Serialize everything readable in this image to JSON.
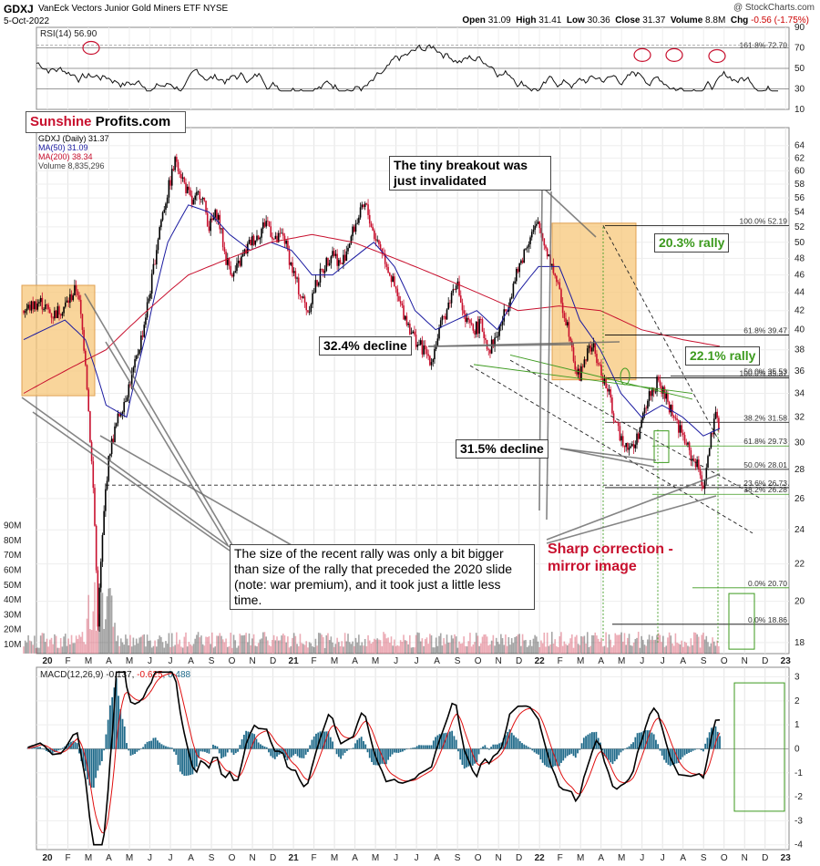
{
  "header": {
    "ticker": "GDXJ",
    "name": "VanEck Vectors Junior Gold Miners ETF",
    "exchange": "NYSE",
    "date": "5-Oct-2022",
    "watermark": "@ StockCharts.com",
    "open_label": "Open",
    "open": "31.09",
    "high_label": "High",
    "high": "31.41",
    "low_label": "Low",
    "low": "30.36",
    "close_label": "Close",
    "close": "31.37",
    "volume_label": "Volume",
    "volume": "8.8M",
    "chg_label": "Chg",
    "chg": "-0.56 (-1.75%)"
  },
  "logo": {
    "part1": "Sunshine",
    "part2": "Profits.com"
  },
  "legend": {
    "symbol": "GDXJ (Daily) 31.37",
    "ma50": "MA(50) 31.09",
    "ma200": "MA(200) 38.34",
    "volume": "Volume 8,835,296"
  },
  "annotations": {
    "breakout": "The tiny breakout was just invalidated",
    "rally203": "20.3% rally",
    "rally221": "22.1% rally",
    "decline324": "32.4% decline",
    "decline315": "31.5% decline",
    "sharp": "Sharp correction - mirror image",
    "size_note": "The size of the recent rally was only a bit bigger than size of the rally that preceded the 2020 slide (note: war premium), and it took just a little less time."
  },
  "colors": {
    "up": "#000000",
    "down": "#c8102e",
    "ma50": "#1a1aa0",
    "ma200": "#c8102e",
    "highlight": "#f7c77a",
    "fib_green": "#3c9a1e",
    "macd_hist": "#1f6a8a",
    "macd_signal": "#e01010"
  },
  "chart_data": [
    {
      "type": "line",
      "title": "RSI(14) 56.90",
      "ylim": [
        10,
        90
      ],
      "y_ticks": [
        "10",
        "30",
        "50",
        "70",
        "90"
      ],
      "ref_lines": [
        30,
        50,
        70
      ],
      "fib_label": "161.8% 72.70",
      "last": 56.9
    },
    {
      "type": "candlestick",
      "title": "GDXJ (Daily) 31.37",
      "y_scale": "log",
      "ylim": [
        17.5,
        67
      ],
      "y_ticks": [
        "18",
        "20",
        "22",
        "24",
        "26",
        "28",
        "30",
        "32",
        "34",
        "36",
        "38",
        "40",
        "42",
        "44",
        "46",
        "48",
        "50",
        "52",
        "54",
        "56",
        "58",
        "60",
        "62",
        "64"
      ],
      "x_ticks": [
        "20",
        "F",
        "M",
        "A",
        "M",
        "J",
        "J",
        "A",
        "S",
        "O",
        "N",
        "D",
        "21",
        "F",
        "M",
        "A",
        "M",
        "J",
        "J",
        "A",
        "S",
        "O",
        "N",
        "D",
        "22",
        "F",
        "M",
        "A",
        "M",
        "J",
        "J",
        "A",
        "S",
        "O",
        "N",
        "D",
        "23"
      ],
      "volume_ticks": [
        "10M",
        "20M",
        "30M",
        "40M",
        "50M",
        "60M",
        "70M",
        "80M",
        "90M"
      ],
      "fib_levels": [
        {
          "label": "100.0% 52.19",
          "value": 52.19
        },
        {
          "label": "61.8% 39.47",
          "value": 39.47
        },
        {
          "label": "50.0% 35.53",
          "value": 35.53
        },
        {
          "label": "100.0% 35.37",
          "value": 35.37
        },
        {
          "label": "38.2% 31.58",
          "value": 31.58
        },
        {
          "label": "61.8% 29.73",
          "value": 29.73
        },
        {
          "label": "50.0% 28.01",
          "value": 28.01
        },
        {
          "label": "23.6% 26.73",
          "value": 26.73
        },
        {
          "label": "38.2% 26.28",
          "value": 26.28
        },
        {
          "label": "0.0% 20.70",
          "value": 20.7
        },
        {
          "label": "0.0% 18.86",
          "value": 18.86
        }
      ],
      "path_points": [
        [
          0,
          42
        ],
        [
          8,
          43
        ],
        [
          14,
          41.5
        ],
        [
          20,
          42.5
        ],
        [
          26,
          44.6
        ],
        [
          30,
          37
        ],
        [
          32,
          31
        ],
        [
          34,
          26
        ],
        [
          36,
          19
        ],
        [
          38,
          23
        ],
        [
          40,
          27
        ],
        [
          42,
          29.5
        ],
        [
          46,
          32
        ],
        [
          50,
          34
        ],
        [
          54,
          36.5
        ],
        [
          58,
          40
        ],
        [
          62,
          45
        ],
        [
          66,
          52
        ],
        [
          70,
          57
        ],
        [
          74,
          62
        ],
        [
          78,
          58
        ],
        [
          82,
          55
        ],
        [
          86,
          57
        ],
        [
          90,
          52
        ],
        [
          94,
          54
        ],
        [
          98,
          48
        ],
        [
          102,
          46
        ],
        [
          106,
          48
        ],
        [
          110,
          50
        ],
        [
          114,
          51
        ],
        [
          118,
          53
        ],
        [
          122,
          50
        ],
        [
          126,
          51
        ],
        [
          130,
          47
        ],
        [
          134,
          44
        ],
        [
          138,
          42
        ],
        [
          142,
          45
        ],
        [
          146,
          47
        ],
        [
          150,
          49
        ],
        [
          154,
          47
        ],
        [
          158,
          50
        ],
        [
          162,
          53
        ],
        [
          166,
          55
        ],
        [
          170,
          51
        ],
        [
          174,
          49
        ],
        [
          178,
          46
        ],
        [
          182,
          43
        ],
        [
          186,
          41
        ],
        [
          190,
          39
        ],
        [
          194,
          38
        ],
        [
          198,
          37
        ],
        [
          202,
          40
        ],
        [
          206,
          42.5
        ],
        [
          210,
          45.5
        ],
        [
          214,
          41
        ],
        [
          218,
          40
        ],
        [
          222,
          40.5
        ],
        [
          226,
          38
        ],
        [
          230,
          39.5
        ],
        [
          234,
          42
        ],
        [
          238,
          45
        ],
        [
          242,
          48
        ],
        [
          246,
          51
        ],
        [
          250,
          52.19
        ],
        [
          254,
          49
        ],
        [
          258,
          46
        ],
        [
          262,
          42
        ],
        [
          266,
          39
        ],
        [
          268,
          36
        ],
        [
          270,
          35.5
        ],
        [
          272,
          37
        ],
        [
          276,
          38.5
        ],
        [
          280,
          36
        ],
        [
          284,
          34
        ],
        [
          288,
          31
        ],
        [
          292,
          30
        ],
        [
          296,
          29.5
        ],
        [
          300,
          31.5
        ],
        [
          304,
          34
        ],
        [
          308,
          35
        ],
        [
          312,
          33.5
        ],
        [
          316,
          32
        ],
        [
          320,
          30.5
        ],
        [
          324,
          29
        ],
        [
          328,
          28
        ],
        [
          330,
          26.8
        ],
        [
          332,
          28.5
        ],
        [
          334,
          30.5
        ],
        [
          336,
          31.9
        ],
        [
          338,
          31.37
        ]
      ],
      "ma50_points": [
        [
          0,
          39
        ],
        [
          20,
          41
        ],
        [
          30,
          39
        ],
        [
          40,
          33
        ],
        [
          50,
          32
        ],
        [
          60,
          40
        ],
        [
          70,
          50
        ],
        [
          80,
          55
        ],
        [
          90,
          54
        ],
        [
          100,
          51
        ],
        [
          110,
          49
        ],
        [
          120,
          50
        ],
        [
          130,
          49
        ],
        [
          140,
          46
        ],
        [
          150,
          46
        ],
        [
          160,
          48
        ],
        [
          170,
          50
        ],
        [
          180,
          47
        ],
        [
          190,
          42
        ],
        [
          200,
          40
        ],
        [
          210,
          41
        ],
        [
          220,
          42
        ],
        [
          230,
          40
        ],
        [
          240,
          44
        ],
        [
          250,
          47
        ],
        [
          260,
          47
        ],
        [
          270,
          41
        ],
        [
          280,
          38
        ],
        [
          290,
          34
        ],
        [
          300,
          32
        ],
        [
          310,
          33
        ],
        [
          320,
          32
        ],
        [
          330,
          30.5
        ],
        [
          338,
          31.09
        ]
      ],
      "ma200_points": [
        [
          0,
          34
        ],
        [
          20,
          36
        ],
        [
          40,
          38
        ],
        [
          60,
          42
        ],
        [
          80,
          46
        ],
        [
          100,
          48
        ],
        [
          120,
          50
        ],
        [
          140,
          51
        ],
        [
          160,
          50
        ],
        [
          180,
          48
        ],
        [
          200,
          46
        ],
        [
          220,
          44
        ],
        [
          240,
          42
        ],
        [
          260,
          42.5
        ],
        [
          280,
          42
        ],
        [
          300,
          40
        ],
        [
          320,
          39
        ],
        [
          338,
          38.34
        ]
      ]
    },
    {
      "type": "line",
      "title": "MACD(12,26,9)",
      "macd": "-0.137",
      "signal": "-0.625",
      "histogram": "0.488",
      "ylim": [
        -4.2,
        3.4
      ],
      "y_ticks": [
        "-4",
        "-3",
        "-2",
        "-1",
        "0",
        "1",
        "2",
        "3"
      ],
      "x_ticks": [
        "20",
        "F",
        "M",
        "A",
        "M",
        "J",
        "J",
        "A",
        "S",
        "O",
        "N",
        "D",
        "21",
        "F",
        "M",
        "A",
        "M",
        "J",
        "J",
        "A",
        "S",
        "O",
        "N",
        "D",
        "22",
        "F",
        "M",
        "A",
        "M",
        "J",
        "J",
        "A",
        "S",
        "O",
        "N",
        "D",
        "23"
      ]
    }
  ]
}
